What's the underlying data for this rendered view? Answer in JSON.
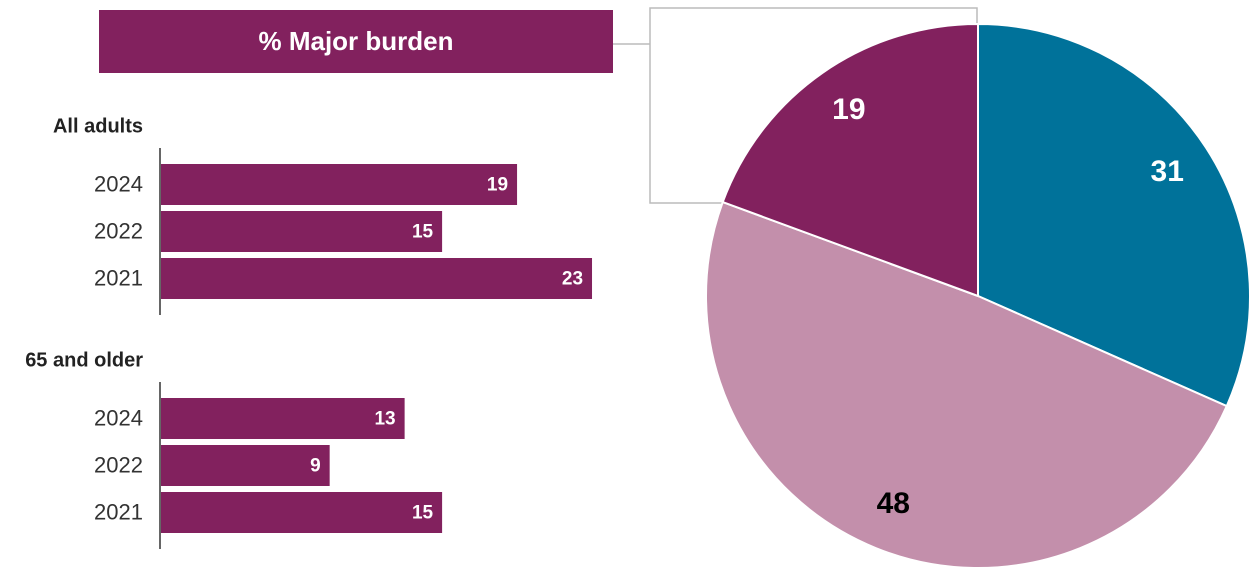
{
  "header": {
    "title": "% Major burden"
  },
  "chart_data": [
    {
      "type": "bar",
      "title": "All adults",
      "categories": [
        "2024",
        "2022",
        "2021"
      ],
      "values": [
        19,
        15,
        23
      ],
      "color": "#82215e"
    },
    {
      "type": "bar",
      "title": "65 and older",
      "categories": [
        "2024",
        "2022",
        "2021"
      ],
      "values": [
        13,
        9,
        15
      ],
      "color": "#82215e"
    },
    {
      "type": "pie",
      "values": [
        31,
        48,
        19
      ],
      "colors": [
        "#00729a",
        "#c38fab",
        "#82215e"
      ],
      "label_colors": [
        "#ffffff",
        "#000000",
        "#ffffff"
      ]
    }
  ]
}
